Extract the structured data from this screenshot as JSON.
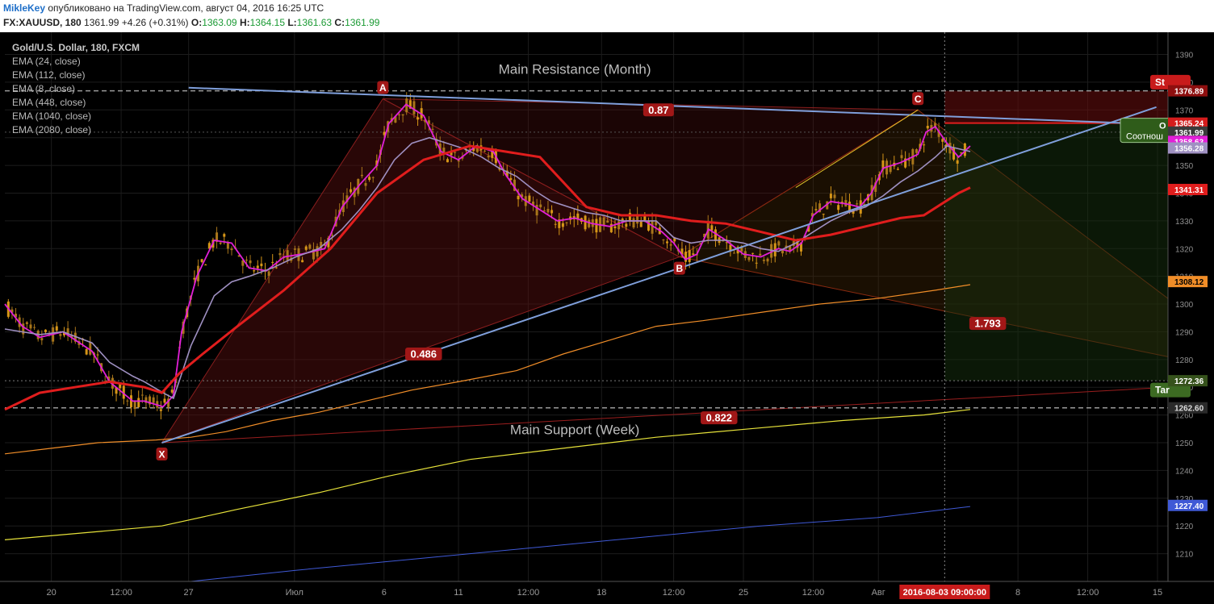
{
  "header": {
    "user": "MikleKey",
    "published": "опубликовано на TradingView.com, август 04, 2016 16:25 UTC",
    "symbol": "FX:XAUUSD, 180",
    "last": "1361.99",
    "change": "+4.26 (+0.31%)",
    "o_label": "O:",
    "o": "1363.09",
    "h_label": "H:",
    "h": "1364.15",
    "l_label": "L:",
    "l": "1361.63",
    "c_label": "C:",
    "c": "1361.99"
  },
  "legend": {
    "title": "Gold/U.S. Dollar, 180, FXCM",
    "items": [
      "EMA (24, close)",
      "EMA (112, close)",
      "EMA (8, close)",
      "EMA (448, close)",
      "EMA (1040, close)",
      "EMA (2080, close)"
    ]
  },
  "colors": {
    "background": "#000000",
    "grid": "#1c1c1c",
    "ema8": "#e21fd8",
    "ema24": "#9f90c2",
    "ema112": "#e01d1d",
    "ema448": "#f08d28",
    "ema1040": "#e6e23a",
    "ema2080": "#3f59d6",
    "resistance_line": "#7f9fdb",
    "pattern_fill": "#5a1010",
    "candle_up": "#d69618",
    "candle_down": "#a9761b"
  },
  "chart_data": {
    "type": "line",
    "symbol": "FX:XAUUSD",
    "timeframe": "180",
    "y_axis": {
      "range": [
        1200,
        1398
      ],
      "ticks": [
        1210,
        1220,
        1230,
        1240,
        1250,
        1260,
        1270,
        1280,
        1290,
        1300,
        1310,
        1320,
        1330,
        1340,
        1350,
        1360,
        1370,
        1380,
        1390
      ]
    },
    "x_axis": {
      "range": [
        0,
        100
      ],
      "ticks": [
        {
          "label": "20",
          "pos": 4.0
        },
        {
          "label": "12:00",
          "pos": 10.0
        },
        {
          "label": "27",
          "pos": 15.8
        },
        {
          "label": "Июл",
          "pos": 24.9
        },
        {
          "label": "6",
          "pos": 32.6
        },
        {
          "label": "11",
          "pos": 39.0
        },
        {
          "label": "12:00",
          "pos": 45.0
        },
        {
          "label": "18",
          "pos": 51.3
        },
        {
          "label": "12:00",
          "pos": 57.5
        },
        {
          "label": "25",
          "pos": 63.5
        },
        {
          "label": "12:00",
          "pos": 69.5
        },
        {
          "label": "Авг",
          "pos": 75.1
        },
        {
          "label": "8",
          "pos": 87.1
        },
        {
          "label": "12:00",
          "pos": 93.1
        },
        {
          "label": "15",
          "pos": 99.1
        }
      ],
      "cursor_label": "2016-08-03 09:00:00",
      "cursor_pos": 80.8
    },
    "series": [
      {
        "name": "EMA (8, close)",
        "color": "#e21fd8",
        "x": [
          0,
          1.5,
          3,
          5,
          7.5,
          9,
          11,
          12,
          13.6,
          14.5,
          15.2,
          16.5,
          18,
          19.5,
          21,
          22.5,
          24,
          25.5,
          27.5,
          29,
          30.5,
          32,
          33,
          34.5,
          36,
          37.5,
          39,
          40.5,
          42,
          43,
          44.5,
          46,
          47.5,
          49,
          50.5,
          52,
          53.5,
          55,
          56.5,
          57.5,
          58.5,
          59.5,
          60.5,
          62,
          63.5,
          65,
          66.5,
          67.5,
          68.5,
          69.5,
          71,
          72.5,
          73.5,
          74.5,
          75.5,
          77,
          78.5,
          79.2,
          80,
          81,
          82,
          83
        ],
        "y": [
          1300,
          1292,
          1288,
          1290,
          1283,
          1272,
          1265,
          1265,
          1263,
          1267,
          1290,
          1310,
          1323,
          1322,
          1313,
          1312,
          1317,
          1318,
          1320,
          1335,
          1343,
          1350,
          1365,
          1372,
          1368,
          1355,
          1352,
          1357,
          1355,
          1347,
          1338,
          1334,
          1330,
          1331,
          1329,
          1328,
          1330,
          1330,
          1326,
          1322,
          1316,
          1318,
          1327,
          1323,
          1318,
          1317,
          1320,
          1319,
          1322,
          1332,
          1337,
          1336,
          1335,
          1340,
          1349,
          1351,
          1354,
          1362,
          1364,
          1358,
          1353,
          1357
        ]
      },
      {
        "name": "EMA (24, close)",
        "color": "#9f90c2",
        "x": [
          0,
          1.5,
          3,
          5,
          7.5,
          9,
          11,
          12,
          13.6,
          14.5,
          16,
          18,
          19.5,
          21,
          23,
          25,
          27,
          29,
          30.5,
          32,
          33.5,
          35,
          36.5,
          38,
          39.5,
          41,
          42.5,
          44,
          45.5,
          47,
          48.5,
          50,
          51.5,
          53,
          54.5,
          56,
          57.5,
          59,
          60.5,
          62,
          63.5,
          65,
          66.5,
          68,
          69.5,
          71,
          72.5,
          74,
          75.5,
          77,
          78.5,
          80,
          81,
          82,
          83
        ],
        "y": [
          1291,
          1290,
          1289,
          1290,
          1286,
          1279,
          1274,
          1272,
          1268,
          1266,
          1285,
          1303,
          1308,
          1310,
          1313,
          1317,
          1320,
          1327,
          1334,
          1342,
          1352,
          1358,
          1360,
          1358,
          1356,
          1353,
          1349,
          1346,
          1341,
          1337,
          1335,
          1333,
          1332,
          1330,
          1330,
          1330,
          1324,
          1322,
          1323,
          1323,
          1322,
          1320,
          1319,
          1322,
          1326,
          1330,
          1333,
          1335,
          1339,
          1344,
          1348,
          1353,
          1357,
          1356,
          1355
        ]
      },
      {
        "name": "EMA (112, close)",
        "color": "#e01d1d",
        "x": [
          0,
          3,
          6,
          9,
          12,
          13.5,
          15,
          17,
          20,
          24,
          28,
          32,
          36,
          40,
          43,
          46,
          50,
          53,
          56,
          59,
          62,
          65,
          68,
          71,
          74,
          77,
          79,
          80.5,
          82,
          83
        ],
        "y": [
          1262,
          1268,
          1270,
          1272,
          1270,
          1268,
          1275,
          1282,
          1292,
          1305,
          1320,
          1340,
          1352,
          1357,
          1355,
          1353,
          1335,
          1332,
          1332,
          1330,
          1329,
          1326,
          1323,
          1325,
          1328,
          1331,
          1332,
          1336,
          1340,
          1342
        ]
      },
      {
        "name": "EMA (448, close)",
        "color": "#f08d28",
        "x": [
          0,
          4,
          8,
          13,
          16,
          19,
          23,
          27,
          31,
          35,
          39,
          44,
          48,
          52,
          56,
          60,
          65,
          70,
          75,
          80,
          83
        ],
        "y": [
          1246,
          1248,
          1250,
          1251,
          1252,
          1254,
          1258,
          1261,
          1265,
          1269,
          1272,
          1276,
          1282,
          1287,
          1292,
          1294,
          1297,
          1300,
          1302,
          1305,
          1307
        ]
      },
      {
        "name": "EMA (1040, close)",
        "color": "#e6e23a",
        "x": [
          0,
          13.5,
          20,
          27,
          33,
          40,
          48,
          56,
          64,
          72,
          79,
          83
        ],
        "y": [
          1215,
          1220,
          1226,
          1232,
          1238,
          1244,
          1248,
          1252,
          1255,
          1258,
          1260,
          1262
        ]
      },
      {
        "name": "EMA (2080, close)",
        "color": "#3f59d6",
        "x": [
          16,
          25,
          35,
          45,
          55,
          65,
          75,
          83
        ],
        "y": [
          1200,
          1204,
          1208,
          1212,
          1216,
          1220,
          1223,
          1227
        ]
      }
    ],
    "candles_tint": {
      "up": "#d69618",
      "down": "#a9761b"
    },
    "pattern_points": [
      {
        "label": "X",
        "x": 13.5,
        "y": 1250
      },
      {
        "label": "A",
        "x": 32.5,
        "y": 1374
      },
      {
        "label": "B",
        "x": 58.0,
        "y": 1317
      },
      {
        "label": "C",
        "x": 78.5,
        "y": 1370
      }
    ],
    "ratio_labels": [
      {
        "text": "0.87",
        "x": 56.2,
        "y": 1370
      },
      {
        "text": "0.486",
        "x": 36.0,
        "y": 1282
      },
      {
        "text": "0.822",
        "x": 61.4,
        "y": 1259
      },
      {
        "text": "1.793",
        "x": 84.5,
        "y": 1293
      }
    ],
    "annotations": [
      {
        "text": "Main Resistance (Month)",
        "x": 49.0,
        "y": 1383
      },
      {
        "text": "Main Support (Week)",
        "x": 49.0,
        "y": 1253
      }
    ],
    "horizontal_levels": [
      1376.89,
      1262.6,
      1272.36
    ],
    "price_labels": [
      {
        "text": "1376.89",
        "value": 1376.89,
        "bg": "#8e0f0f",
        "fg": "#ffffff"
      },
      {
        "text": "1365.24",
        "value": 1365.24,
        "bg": "#d41c1c",
        "fg": "#ffffff"
      },
      {
        "text": "1361.99",
        "value": 1361.99,
        "bg": "#3a3a3a",
        "fg": "#ffffff"
      },
      {
        "text": "1358.63",
        "value": 1358.63,
        "bg": "#e21fd8",
        "fg": "#ffffff"
      },
      {
        "text": "1356.28",
        "value": 1356.28,
        "bg": "#9f90c2",
        "fg": "#ffffff"
      },
      {
        "text": "1341.31",
        "value": 1341.31,
        "bg": "#e01d1d",
        "fg": "#ffffff"
      },
      {
        "text": "1308.12",
        "value": 1308.12,
        "bg": "#f08d28",
        "fg": "#000000"
      },
      {
        "text": "1272.36",
        "value": 1272.36,
        "bg": "#36521c",
        "fg": "#ffffff"
      },
      {
        "text": "1262.60",
        "value": 1262.6,
        "bg": "#2a2a2a",
        "fg": "#dddddd"
      },
      {
        "text": "1227.40",
        "value": 1227.4,
        "bg": "#3f59d6",
        "fg": "#ffffff"
      }
    ],
    "position_tool": {
      "stop_label": "St",
      "target_label": "Tar",
      "entry_label_1": "O",
      "entry_label_2": "Соотнош"
    }
  }
}
